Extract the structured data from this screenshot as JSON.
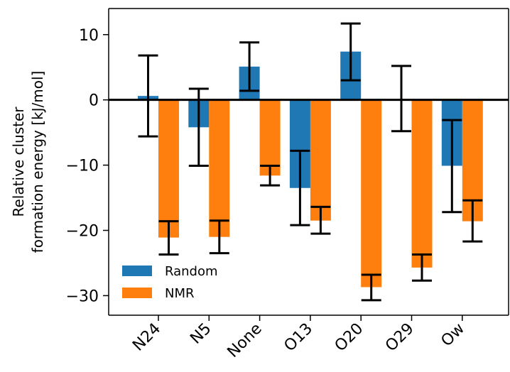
{
  "chart_data": {
    "type": "bar",
    "title": "",
    "xlabel": "",
    "ylabel_lines": [
      "Relative cluster",
      "formation energy [kJ/mol]"
    ],
    "categories": [
      "N24",
      "N5",
      "None",
      "O13",
      "O20",
      "O29",
      "Ow"
    ],
    "ylim": [
      -33,
      14
    ],
    "yticks": [
      10,
      0,
      -10,
      -20,
      -30
    ],
    "ytick_labels": [
      "10",
      "0",
      "−10",
      "−20",
      "−30"
    ],
    "legend_position": "lower-left",
    "series": [
      {
        "name": "Random",
        "color": "#1f77b4",
        "values": [
          0.6,
          -4.2,
          5.1,
          -13.5,
          7.4,
          0.0,
          -10.1
        ],
        "err_low": [
          -5.6,
          -10.1,
          1.4,
          -19.2,
          3.0,
          -4.8,
          -17.2
        ],
        "err_high": [
          6.8,
          1.7,
          8.8,
          -7.8,
          11.7,
          5.2,
          -3.1
        ]
      },
      {
        "name": "NMR",
        "color": "#ff7f0e",
        "values": [
          -21.1,
          -21.0,
          -11.6,
          -18.5,
          -28.7,
          -25.7,
          -18.6
        ],
        "err_low": [
          -23.7,
          -23.5,
          -13.1,
          -20.5,
          -30.7,
          -27.7,
          -21.7
        ],
        "err_high": [
          -18.6,
          -18.5,
          -10.1,
          -16.4,
          -26.8,
          -23.7,
          -15.4
        ]
      }
    ]
  }
}
